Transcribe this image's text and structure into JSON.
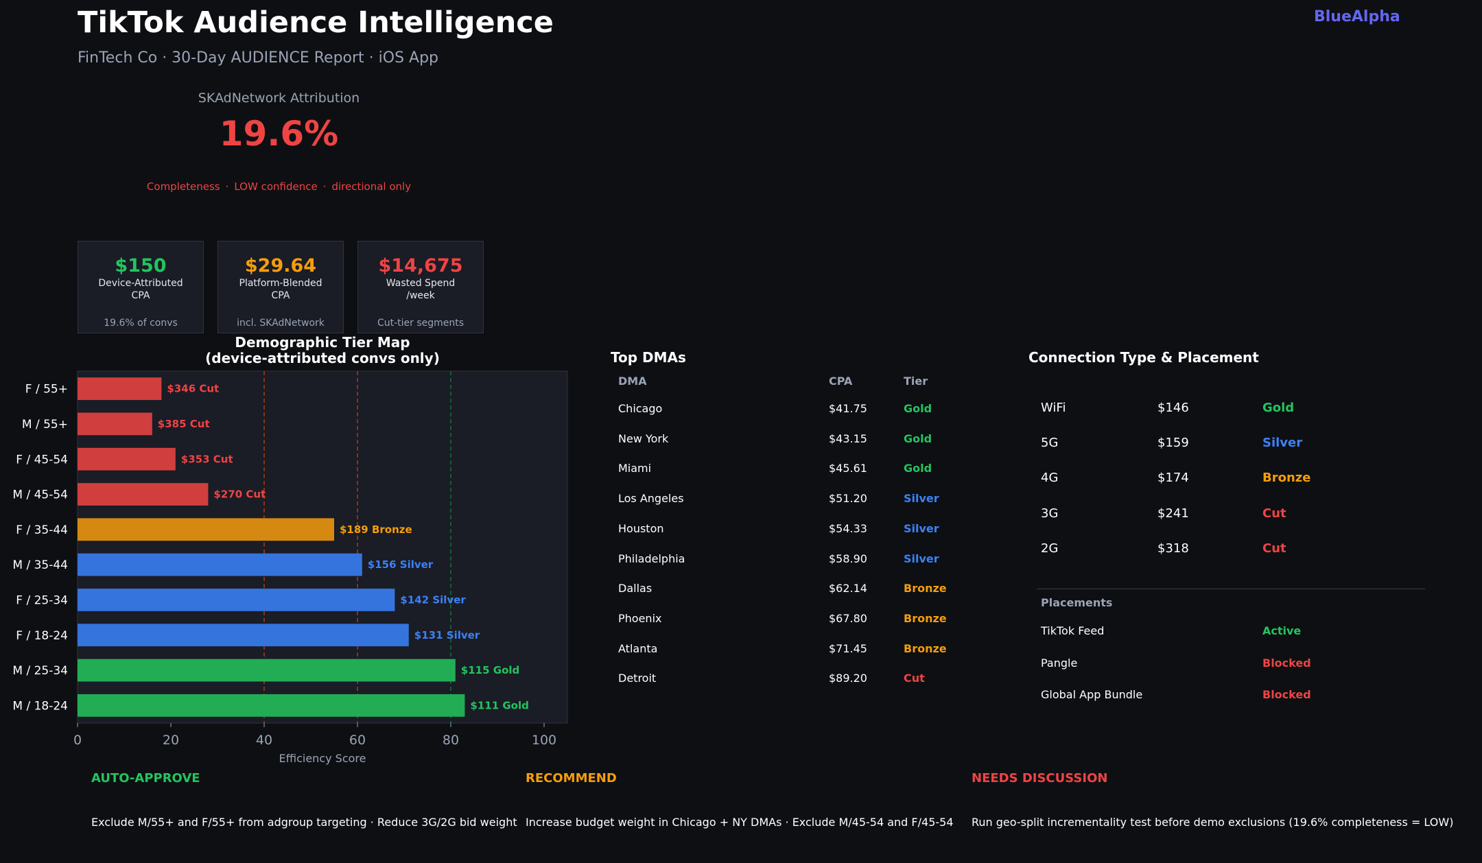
{
  "header": {
    "title": "TikTok Audience Intelligence",
    "subtitle": "FinTech Co · 30-Day AUDIENCE Report · iOS App",
    "brand": "BlueAlpha"
  },
  "skadnetwork": {
    "label": "SKAdNetwork Attribution",
    "value": "19.6%",
    "note_parts": [
      "Completeness",
      "LOW confidence",
      "directional only"
    ],
    "separator": "·"
  },
  "kpis": [
    {
      "value": "$150",
      "label": "Device-Attributed\nCPA",
      "sub": "19.6% of convs",
      "color": "#22c55e"
    },
    {
      "value": "$29.64",
      "label": "Platform-Blended\nCPA",
      "sub": "incl. SKAdNetwork",
      "color": "#f59e0b"
    },
    {
      "value": "$14,675",
      "label": "Wasted Spend\n/week",
      "sub": "Cut-tier segments",
      "color": "#ef4444"
    }
  ],
  "colors": {
    "Gold": "#22c55e",
    "Silver": "#3b82f6",
    "Bronze": "#f59e0b",
    "Cut": "#ef4444",
    "Active": "#22c55e",
    "Blocked": "#ef4444"
  },
  "chart_data": {
    "type": "bar",
    "orientation": "horizontal",
    "title": "Demographic Tier Map\n(device-attributed convs only)",
    "xlabel": "Efficiency Score",
    "ylabel": "",
    "xlim": [
      0,
      105
    ],
    "xticks": [
      0,
      20,
      40,
      60,
      80,
      100
    ],
    "reference_lines": [
      40,
      60,
      80
    ],
    "categories": [
      "F / 55+",
      "M / 55+",
      "F / 45-54",
      "M / 45-54",
      "F / 35-44",
      "M / 35-44",
      "F / 25-34",
      "F / 18-24",
      "M / 25-34",
      "M / 18-24"
    ],
    "values": [
      18,
      16,
      21,
      28,
      55,
      61,
      68,
      71,
      81,
      83
    ],
    "labels": [
      "$346  Cut",
      "$385  Cut",
      "$353  Cut",
      "$270  Cut",
      "$189  Bronze",
      "$156  Silver",
      "$142  Silver",
      "$131  Silver",
      "$115  Gold",
      "$111  Gold"
    ],
    "tiers": [
      "Cut",
      "Cut",
      "Cut",
      "Cut",
      "Bronze",
      "Silver",
      "Silver",
      "Silver",
      "Gold",
      "Gold"
    ],
    "grid": false
  },
  "dma": {
    "title": "Top DMAs",
    "headers": [
      "DMA",
      "CPA",
      "Tier"
    ],
    "rows": [
      {
        "name": "Chicago",
        "cpa": "$41.75",
        "tier": "Gold"
      },
      {
        "name": "New York",
        "cpa": "$43.15",
        "tier": "Gold"
      },
      {
        "name": "Miami",
        "cpa": "$45.61",
        "tier": "Gold"
      },
      {
        "name": "Los Angeles",
        "cpa": "$51.20",
        "tier": "Silver"
      },
      {
        "name": "Houston",
        "cpa": "$54.33",
        "tier": "Silver"
      },
      {
        "name": "Philadelphia",
        "cpa": "$58.90",
        "tier": "Silver"
      },
      {
        "name": "Dallas",
        "cpa": "$62.14",
        "tier": "Bronze"
      },
      {
        "name": "Phoenix",
        "cpa": "$67.80",
        "tier": "Bronze"
      },
      {
        "name": "Atlanta",
        "cpa": "$71.45",
        "tier": "Bronze"
      },
      {
        "name": "Detroit",
        "cpa": "$89.20",
        "tier": "Cut"
      }
    ]
  },
  "connection": {
    "title": "Connection Type & Placement",
    "rows": [
      {
        "name": "WiFi",
        "cpa": "$146",
        "tier": "Gold"
      },
      {
        "name": "5G",
        "cpa": "$159",
        "tier": "Silver"
      },
      {
        "name": "4G",
        "cpa": "$174",
        "tier": "Bronze"
      },
      {
        "name": "3G",
        "cpa": "$241",
        "tier": "Cut"
      },
      {
        "name": "2G",
        "cpa": "$318",
        "tier": "Cut"
      }
    ],
    "placements_title": "Placements",
    "placements": [
      {
        "name": "TikTok Feed",
        "status": "Active"
      },
      {
        "name": "Pangle",
        "status": "Blocked"
      },
      {
        "name": "Global App Bundle",
        "status": "Blocked"
      }
    ]
  },
  "actions": [
    {
      "heading": "AUTO-APPROVE",
      "color": "#22c55e",
      "text": "Exclude M/55+ and F/55+ from adgroup targeting  ·  Reduce 3G/2G bid weight"
    },
    {
      "heading": "RECOMMEND",
      "color": "#f59e0b",
      "text": "Increase budget weight in Chicago + NY DMAs  ·  Exclude M/45-54 and F/45-54"
    },
    {
      "heading": "NEEDS DISCUSSION",
      "color": "#ef4444",
      "text": "Run geo-split incrementality test before demo exclusions (19.6% completeness = LOW)"
    }
  ]
}
